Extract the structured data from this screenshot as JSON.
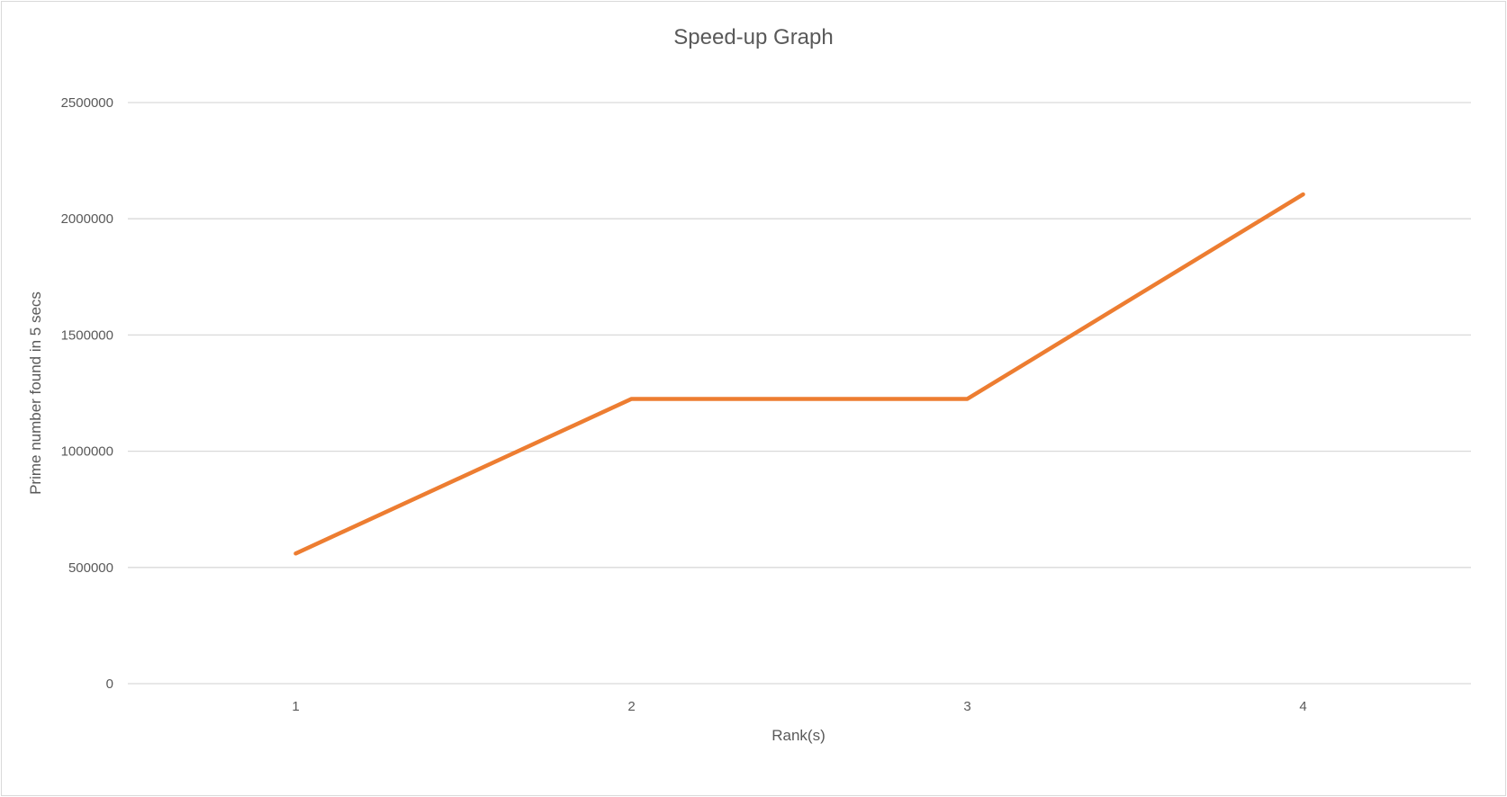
{
  "chart_data": {
    "type": "line",
    "title": "Speed-up Graph",
    "xlabel": "Rank(s)",
    "ylabel": "Prime number  found in 5 secs",
    "categories": [
      "1",
      "2",
      "3",
      "4"
    ],
    "series": [
      {
        "values": [
          560000,
          1225000,
          1225000,
          2105000
        ],
        "color": "#ED7D31"
      }
    ],
    "y_ticks": [
      0,
      500000,
      1000000,
      1500000,
      2000000,
      2500000
    ],
    "ylim": [
      0,
      2500000
    ],
    "grid": true,
    "legend": "none"
  }
}
